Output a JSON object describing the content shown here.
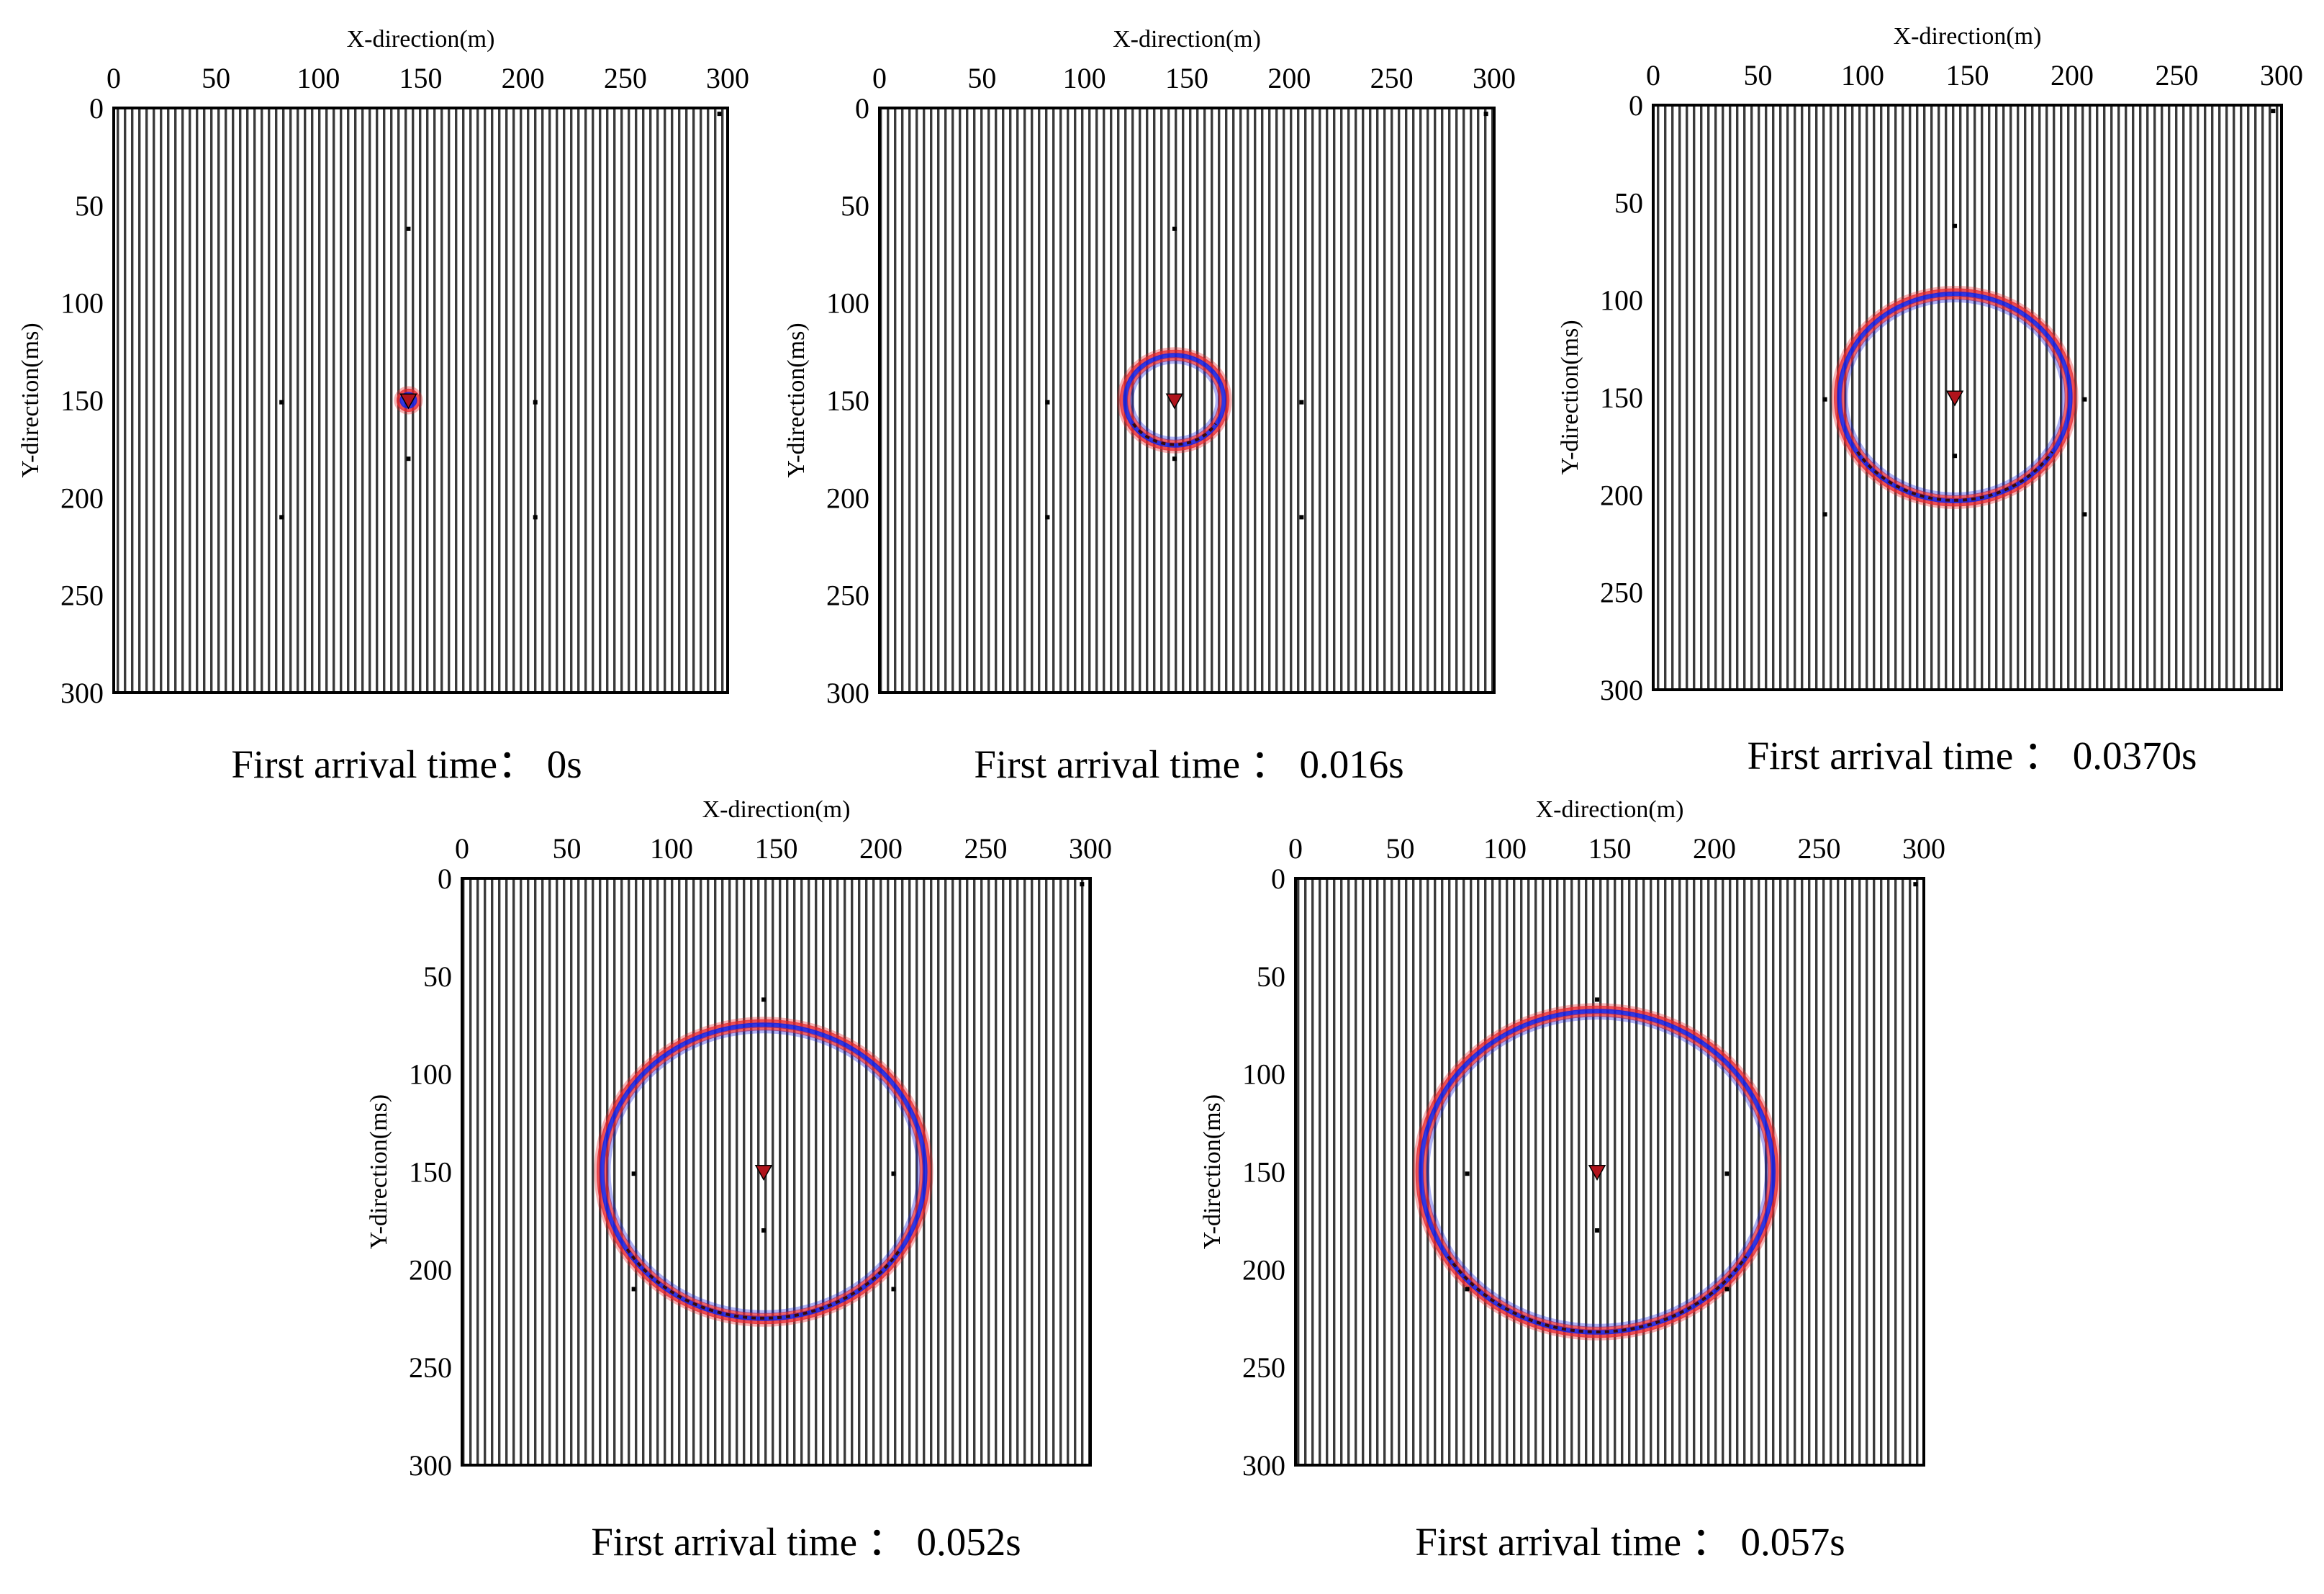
{
  "figure": {
    "description_type": "seismic wavefield snapshots"
  },
  "colors": {
    "trace_line": "#333333",
    "frame": "#000000",
    "wave_red": "#e8242c",
    "wave_blue": "#1a22e0",
    "source_marker": "#b0141c",
    "receiver_dot": "#000000"
  },
  "chart_data": [
    {
      "type": "wavefield-snapshot",
      "caption": "First arrival time： 0s",
      "xlabel": "X-direction(m)",
      "ylabel": "Y-direction(ms)",
      "xlim": [
        0,
        300
      ],
      "ylim": [
        0,
        300
      ],
      "x_ticks": [
        0,
        50,
        100,
        150,
        200,
        250,
        300
      ],
      "y_ticks": [
        0,
        50,
        100,
        150,
        200,
        250,
        300
      ],
      "source": {
        "x": 144,
        "y": 150
      },
      "receivers": [
        [
          144,
          62
        ],
        [
          82,
          151
        ],
        [
          206,
          151
        ],
        [
          144,
          180
        ],
        [
          82,
          210
        ],
        [
          206,
          210
        ],
        [
          296,
          3
        ]
      ],
      "wavefront": {
        "rx": 3,
        "ry": 3
      }
    },
    {
      "type": "wavefield-snapshot",
      "caption": "First arrival time ： 0.016s",
      "xlabel": "X-direction(m)",
      "ylabel": "Y-direction(ms)",
      "xlim": [
        0,
        300
      ],
      "ylim": [
        0,
        300
      ],
      "x_ticks": [
        0,
        50,
        100,
        150,
        200,
        250,
        300
      ],
      "y_ticks": [
        0,
        50,
        100,
        150,
        200,
        250,
        300
      ],
      "source": {
        "x": 144,
        "y": 150
      },
      "receivers": [
        [
          144,
          62
        ],
        [
          82,
          151
        ],
        [
          206,
          151
        ],
        [
          144,
          180
        ],
        [
          82,
          210
        ],
        [
          206,
          210
        ],
        [
          296,
          3
        ]
      ],
      "wavefront": {
        "rx": 24,
        "ry": 23
      }
    },
    {
      "type": "wavefield-snapshot",
      "caption": "First arrival time ： 0.0370s",
      "xlabel": "X-direction(m)",
      "ylabel": "Y-direction(ms)",
      "xlim": [
        0,
        300
      ],
      "ylim": [
        0,
        300
      ],
      "x_ticks": [
        0,
        50,
        100,
        150,
        200,
        250,
        300
      ],
      "y_ticks": [
        0,
        50,
        100,
        150,
        200,
        250,
        300
      ],
      "source": {
        "x": 144,
        "y": 150
      },
      "receivers": [
        [
          144,
          62
        ],
        [
          82,
          151
        ],
        [
          206,
          151
        ],
        [
          144,
          180
        ],
        [
          82,
          210
        ],
        [
          206,
          210
        ],
        [
          296,
          3
        ]
      ],
      "wavefront": {
        "rx": 55,
        "ry": 53
      }
    },
    {
      "type": "wavefield-snapshot",
      "caption": "First arrival time ： 0.052s",
      "xlabel": "X-direction(m)",
      "ylabel": "Y-direction(ms)",
      "xlim": [
        0,
        300
      ],
      "ylim": [
        0,
        300
      ],
      "x_ticks": [
        0,
        50,
        100,
        150,
        200,
        250,
        300
      ],
      "y_ticks": [
        0,
        50,
        100,
        150,
        200,
        250,
        300
      ],
      "source": {
        "x": 144,
        "y": 150
      },
      "receivers": [
        [
          144,
          62
        ],
        [
          82,
          151
        ],
        [
          206,
          151
        ],
        [
          144,
          180
        ],
        [
          82,
          210
        ],
        [
          206,
          210
        ],
        [
          296,
          3
        ]
      ],
      "wavefront": {
        "rx": 77,
        "ry": 75
      }
    },
    {
      "type": "wavefield-snapshot",
      "caption": "First arrival time ： 0.057s",
      "xlabel": "X-direction(m)",
      "ylabel": "Y-direction(ms)",
      "xlim": [
        0,
        300
      ],
      "ylim": [
        0,
        300
      ],
      "x_ticks": [
        0,
        50,
        100,
        150,
        200,
        250,
        300
      ],
      "y_ticks": [
        0,
        50,
        100,
        150,
        200,
        250,
        300
      ],
      "source": {
        "x": 144,
        "y": 150
      },
      "receivers": [
        [
          144,
          62
        ],
        [
          82,
          151
        ],
        [
          206,
          151
        ],
        [
          144,
          180
        ],
        [
          82,
          210
        ],
        [
          206,
          210
        ],
        [
          296,
          3
        ]
      ],
      "wavefront": {
        "rx": 84,
        "ry": 82
      }
    }
  ]
}
